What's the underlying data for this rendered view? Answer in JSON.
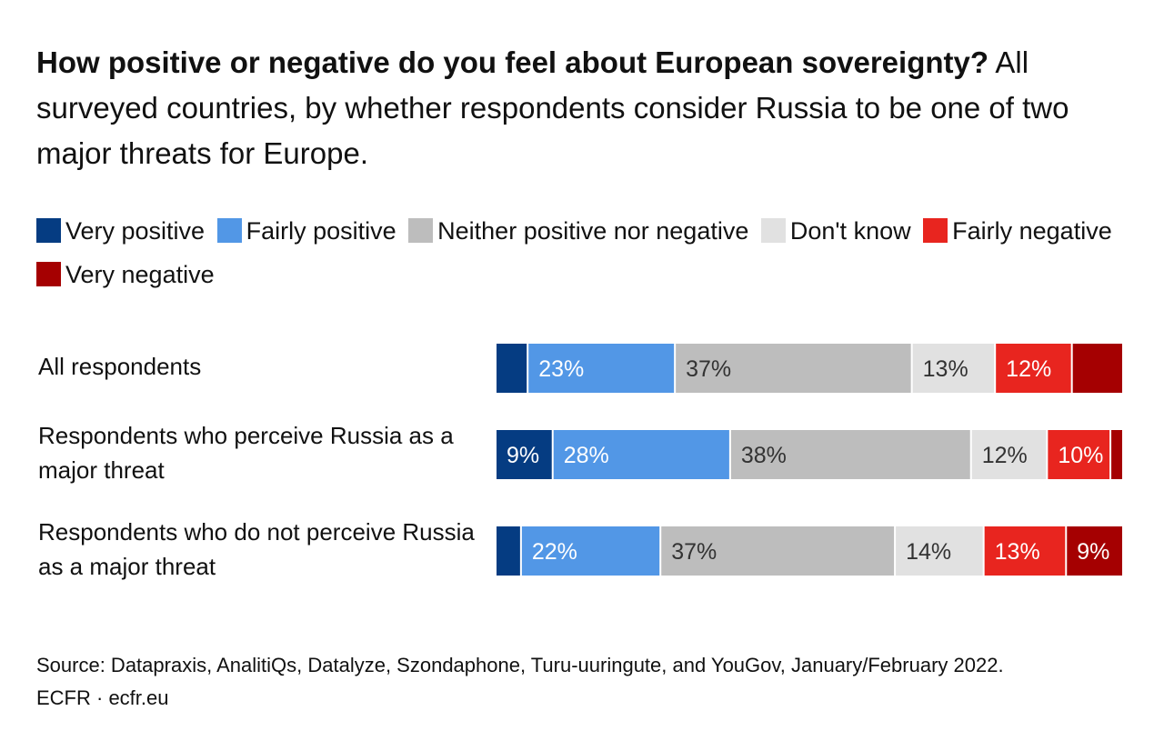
{
  "title": {
    "bold": "How positive or negative do you feel about European sovereignty?",
    "rest": "All surveyed countries, by whether respondents consider Russia to be one of two major threats for Europe."
  },
  "colors": {
    "very_positive": "#053c82",
    "fairly_positive": "#5297e6",
    "neither": "#bdbdbd",
    "dont_know": "#e1e1e1",
    "fairly_negative": "#e8251f",
    "very_negative": "#a50001"
  },
  "legend": [
    {
      "label": "Very positive",
      "color": "#053c82"
    },
    {
      "label": "Fairly positive",
      "color": "#5297e6"
    },
    {
      "label": "Neither positive nor negative",
      "color": "#bdbdbd"
    },
    {
      "label": "Don't know",
      "color": "#e1e1e1"
    },
    {
      "label": "Fairly negative",
      "color": "#e8251f"
    },
    {
      "label": "Very negative",
      "color": "#a50001"
    }
  ],
  "chart_data": {
    "type": "bar",
    "orientation": "horizontal",
    "stacked": true,
    "normalized": true,
    "categories": [
      "All respondents",
      "Respondents who perceive Russia as a major threat",
      "Respondents who do not perceive Russia as a major threat"
    ],
    "series": [
      {
        "name": "Very positive",
        "color": "#053c82",
        "values": [
          5,
          9,
          4
        ],
        "labels": [
          "",
          "9%",
          ""
        ],
        "label_color": "#ffffff"
      },
      {
        "name": "Fairly positive",
        "color": "#5297e6",
        "values": [
          23,
          28,
          22
        ],
        "labels": [
          "23%",
          "28%",
          "22%"
        ],
        "label_color": "#ffffff"
      },
      {
        "name": "Neither positive nor negative",
        "color": "#bdbdbd",
        "values": [
          37,
          38,
          37
        ],
        "labels": [
          "37%",
          "38%",
          "37%"
        ],
        "label_color": "#333333"
      },
      {
        "name": "Don't know",
        "color": "#e1e1e1",
        "values": [
          13,
          12,
          14
        ],
        "labels": [
          "13%",
          "12%",
          "14%"
        ],
        "label_color": "#333333"
      },
      {
        "name": "Fairly negative",
        "color": "#e8251f",
        "values": [
          12,
          10,
          13
        ],
        "labels": [
          "12%",
          "10%",
          "13%"
        ],
        "label_color": "#ffffff"
      },
      {
        "name": "Very negative",
        "color": "#a50001",
        "values": [
          8,
          2,
          9
        ],
        "labels": [
          "",
          "",
          "9%"
        ],
        "label_color": "#ffffff"
      }
    ],
    "title": "How positive or negative do you feel about European sovereignty?",
    "legend_position": "top",
    "grid": false
  },
  "footer": {
    "source": "Source: Datapraxis, AnalitiQs, Datalyze, Szondaphone, Turu-uuringute, and YouGov, January/February 2022.",
    "credit": "ECFR · ecfr.eu"
  }
}
